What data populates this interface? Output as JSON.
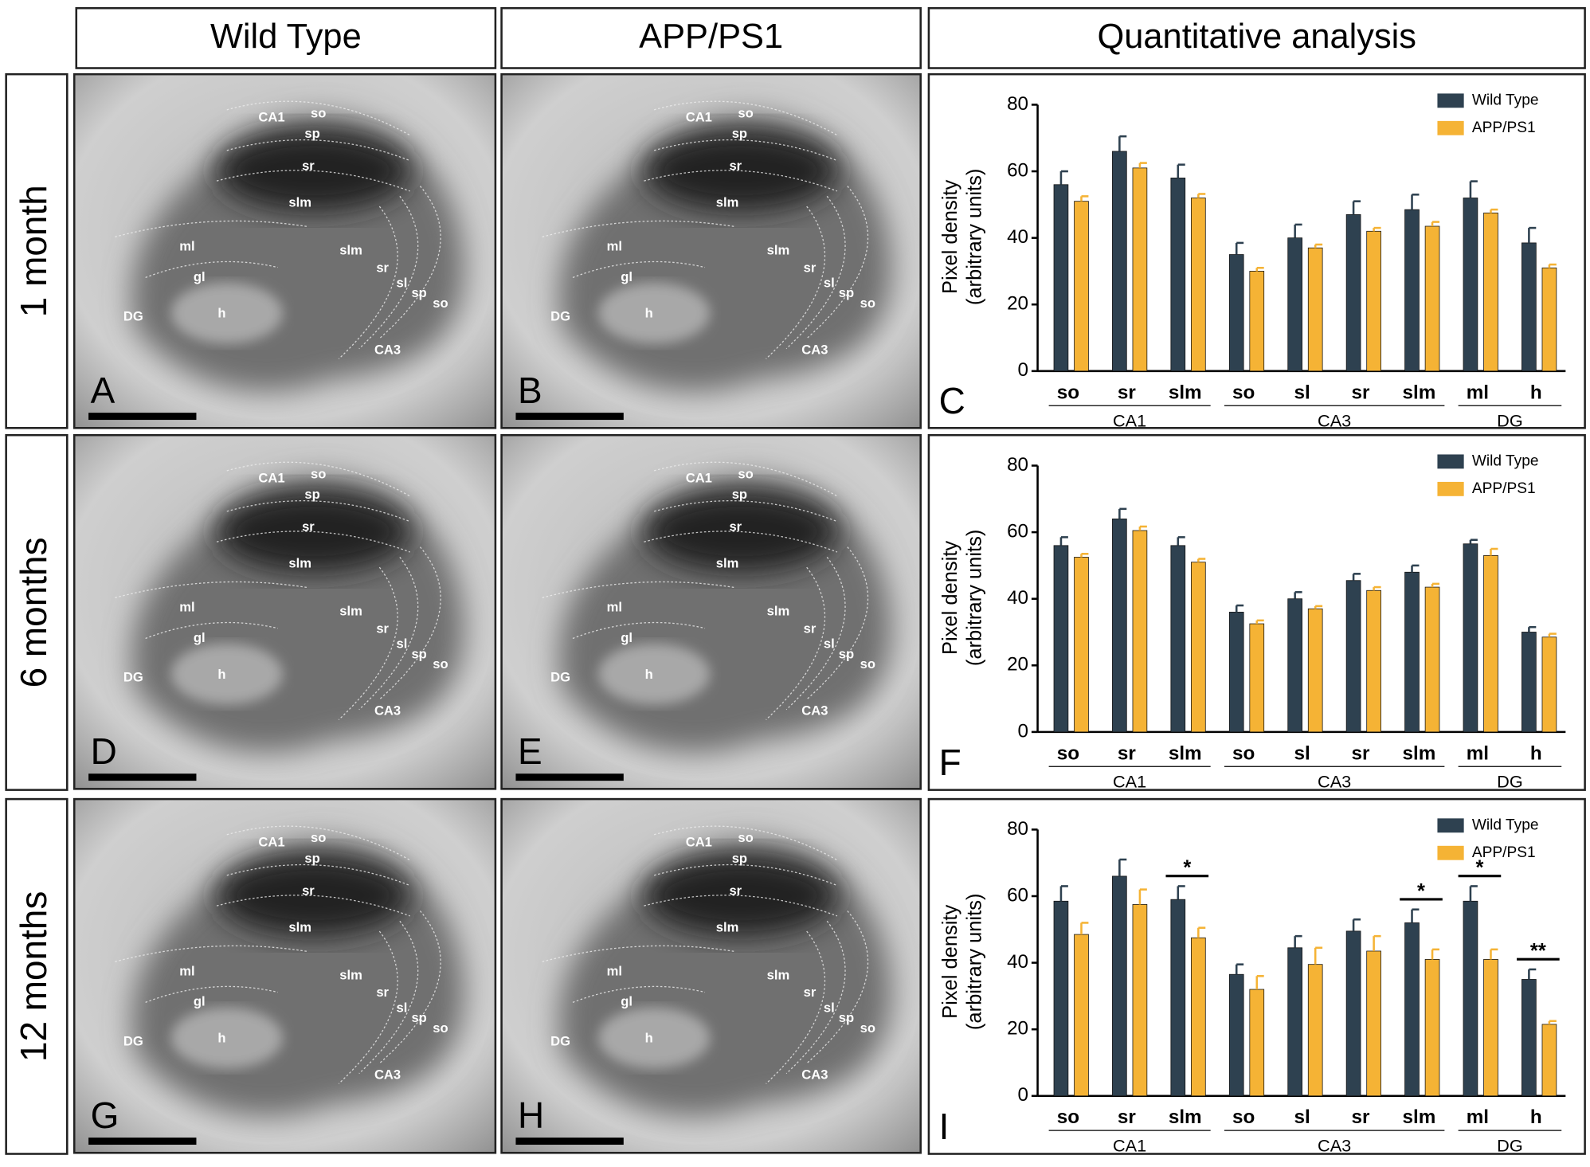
{
  "figure": {
    "headers": [
      "Wild Type",
      "APP/PS1",
      "Quantitative analysis"
    ],
    "rows": [
      "1 month",
      "6 months",
      "12 months"
    ],
    "micrographs": [
      {
        "letter": "A",
        "region_labels": [
          "CA1",
          "so",
          "sp",
          "sr",
          "slm",
          "ml",
          "gl",
          "h",
          "DG",
          "slm",
          "sr",
          "sl",
          "sp",
          "so",
          "CA3"
        ]
      },
      {
        "letter": "B",
        "region_labels": [
          "CA1",
          "so",
          "sp",
          "sr",
          "slm",
          "ml",
          "gl",
          "h",
          "DG",
          "slm",
          "sr",
          "sl",
          "sp",
          "so",
          "CA3"
        ]
      },
      {
        "letter": "D",
        "region_labels": [
          "CA1",
          "so",
          "sp",
          "sr",
          "slm",
          "ml",
          "gl",
          "h",
          "DG",
          "slm",
          "sr",
          "sl",
          "sp",
          "so",
          "CA3"
        ]
      },
      {
        "letter": "E",
        "region_labels": [
          "CA1",
          "so",
          "sp",
          "sr",
          "slm",
          "ml",
          "gl",
          "h",
          "DG",
          "slm",
          "sr",
          "sl",
          "sp",
          "so",
          "CA3"
        ]
      },
      {
        "letter": "G",
        "region_labels": [
          "CA1",
          "so",
          "sp",
          "sr",
          "slm",
          "ml",
          "gl",
          "h",
          "DG",
          "slm",
          "sr",
          "sl",
          "sp",
          "so",
          "CA3"
        ]
      },
      {
        "letter": "H",
        "region_labels": [
          "CA1",
          "so",
          "sp",
          "sr",
          "slm",
          "ml",
          "gl",
          "h",
          "DG",
          "slm",
          "sr",
          "sl",
          "sp",
          "so",
          "CA3"
        ]
      }
    ]
  },
  "chart_data": [
    {
      "type": "bar",
      "letter": "C",
      "ylabel": [
        "Pixel density",
        "(arbitrary units)"
      ],
      "categories": [
        "so",
        "sr",
        "slm",
        "so",
        "sl",
        "sr",
        "slm",
        "ml",
        "h"
      ],
      "groups": [
        {
          "label": "CA1",
          "span": 3
        },
        {
          "label": "CA3",
          "span": 4
        },
        {
          "label": "DG",
          "span": 2
        }
      ],
      "series": [
        {
          "name": "Wild Type",
          "color": "#2e4150",
          "values": [
            56,
            66,
            58,
            35,
            40,
            47,
            48.5,
            52,
            38.5
          ],
          "errors": [
            4,
            4.5,
            4,
            3.5,
            4,
            4,
            4.5,
            5,
            4.5
          ]
        },
        {
          "name": "APP/PS1",
          "color": "#f5b335",
          "values": [
            51,
            61,
            52,
            30,
            37,
            42,
            43.5,
            47.5,
            31
          ],
          "errors": [
            1.5,
            1.5,
            1.2,
            1,
            1,
            1,
            1.3,
            1,
            1
          ]
        }
      ],
      "ylim": [
        0,
        80
      ],
      "yticks": [
        0,
        20,
        40,
        60,
        80
      ],
      "legend": "top-right"
    },
    {
      "type": "bar",
      "letter": "F",
      "ylabel": [
        "Pixel density",
        "(arbitrary units)"
      ],
      "categories": [
        "so",
        "sr",
        "slm",
        "so",
        "sl",
        "sr",
        "slm",
        "ml",
        "h"
      ],
      "groups": [
        {
          "label": "CA1",
          "span": 3
        },
        {
          "label": "CA3",
          "span": 4
        },
        {
          "label": "DG",
          "span": 2
        }
      ],
      "series": [
        {
          "name": "Wild Type",
          "color": "#2e4150",
          "values": [
            56,
            64,
            56,
            36,
            40,
            45.5,
            48,
            56.5,
            30
          ],
          "errors": [
            2.5,
            3,
            2.5,
            2,
            2,
            2,
            2,
            1.2,
            1.5
          ]
        },
        {
          "name": "APP/PS1",
          "color": "#f5b335",
          "values": [
            52.5,
            60.5,
            51,
            32.5,
            37,
            42.5,
            43.5,
            53,
            28.5
          ],
          "errors": [
            1,
            1.2,
            1,
            1,
            0.8,
            1,
            1,
            2,
            1
          ]
        }
      ],
      "ylim": [
        0,
        80
      ],
      "yticks": [
        0,
        20,
        40,
        60,
        80
      ],
      "legend": "top-right"
    },
    {
      "type": "bar",
      "letter": "I",
      "ylabel": [
        "Pixel density",
        "(arbitrary units)"
      ],
      "categories": [
        "so",
        "sr",
        "slm",
        "so",
        "sl",
        "sr",
        "slm",
        "ml",
        "h"
      ],
      "groups": [
        {
          "label": "CA1",
          "span": 3
        },
        {
          "label": "CA3",
          "span": 4
        },
        {
          "label": "DG",
          "span": 2
        }
      ],
      "series": [
        {
          "name": "Wild Type",
          "color": "#2e4150",
          "values": [
            58.5,
            66,
            59,
            36.5,
            44.5,
            49.5,
            52,
            58.5,
            35
          ],
          "errors": [
            4.5,
            5,
            4,
            3,
            3.5,
            3.5,
            4,
            4.5,
            3
          ]
        },
        {
          "name": "APP/PS1",
          "color": "#f5b335",
          "values": [
            48.5,
            57.5,
            47.5,
            32,
            39.5,
            43.5,
            41,
            41,
            21.5
          ],
          "errors": [
            3.5,
            4.5,
            3,
            4,
            5,
            4.5,
            3,
            3,
            1
          ]
        }
      ],
      "annotations": [
        {
          "category": 2,
          "text": "*"
        },
        {
          "category": 6,
          "text": "*"
        },
        {
          "category": 7,
          "text": "*"
        },
        {
          "category": 8,
          "text": "**"
        }
      ],
      "ylim": [
        0,
        80
      ],
      "yticks": [
        0,
        20,
        40,
        60,
        80
      ],
      "legend": "top-right"
    }
  ]
}
